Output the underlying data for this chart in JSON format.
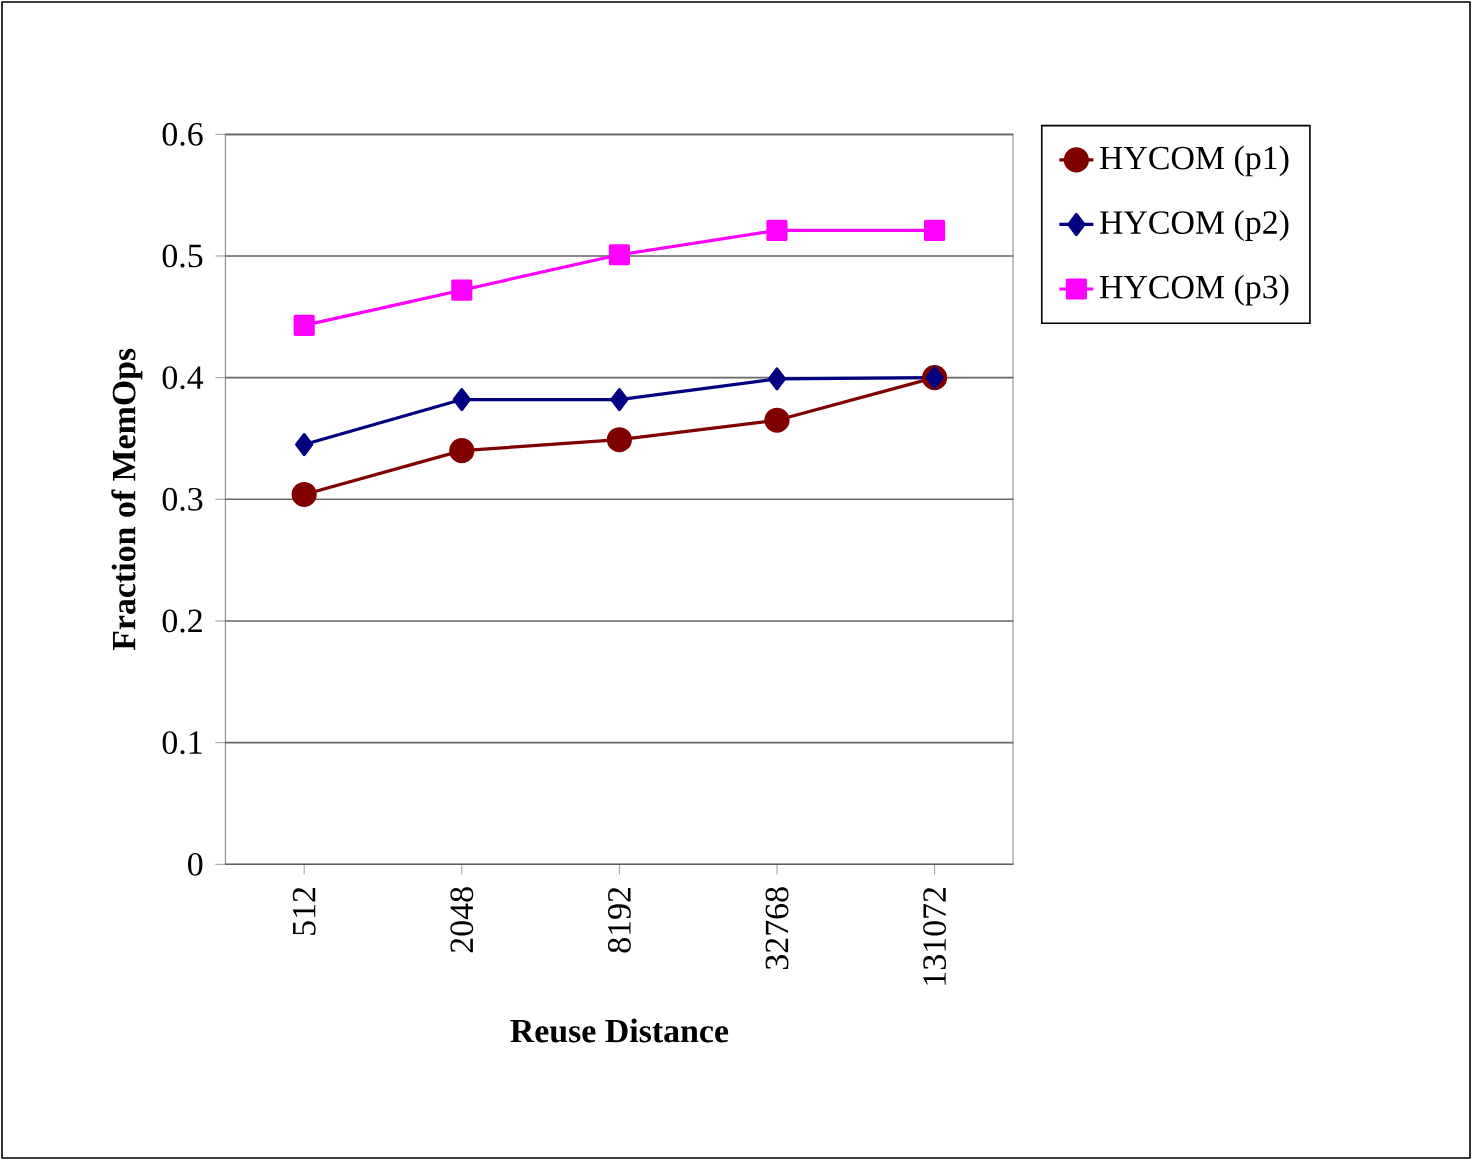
{
  "chart_data": {
    "type": "line",
    "xlabel": "Reuse Distance",
    "ylabel": "Fraction of MemOps",
    "categories": [
      "512",
      "2048",
      "8192",
      "32768",
      "131072"
    ],
    "series": [
      {
        "name": "HYCOM (p1)",
        "color": "#800000",
        "marker": "circle",
        "values": [
          0.304,
          0.34,
          0.349,
          0.365,
          0.4
        ]
      },
      {
        "name": "HYCOM (p2)",
        "color": "#000080",
        "marker": "diamond",
        "values": [
          0.345,
          0.382,
          0.382,
          0.399,
          0.4
        ]
      },
      {
        "name": "HYCOM (p3)",
        "color": "#ff00ff",
        "marker": "square",
        "values": [
          0.443,
          0.472,
          0.501,
          0.521,
          0.521
        ]
      }
    ],
    "ylim": [
      0,
      0.6
    ],
    "yticks": [
      0,
      0.1,
      0.2,
      0.3,
      0.4,
      0.5,
      0.6
    ],
    "grid": "y",
    "legend": "right"
  }
}
